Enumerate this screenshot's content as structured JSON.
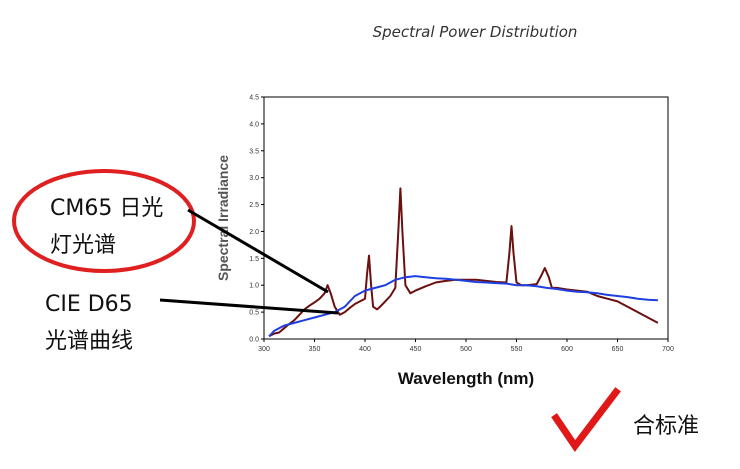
{
  "chart_data": {
    "type": "line",
    "title": "Spectral Power Distribution",
    "xlabel": "Wavelength (nm)",
    "ylabel": "Spectral Irradiance",
    "xlim": [
      300,
      700
    ],
    "ylim": [
      0,
      4.5
    ],
    "x_ticks": [
      "300",
      "350",
      "400",
      "450",
      "500",
      "550",
      "600",
      "650",
      "700"
    ],
    "y_ticks": [
      "0.0",
      "0.5",
      "1.0",
      "1.5",
      "2.0",
      "2.5",
      "3.0",
      "3.5",
      "4.0",
      "4.5"
    ],
    "grid": false,
    "series": [
      {
        "name": "CM65",
        "color": "#6b0f0f",
        "points": [
          [
            305,
            0.05
          ],
          [
            310,
            0.1
          ],
          [
            315,
            0.12
          ],
          [
            320,
            0.2
          ],
          [
            325,
            0.28
          ],
          [
            330,
            0.35
          ],
          [
            335,
            0.45
          ],
          [
            340,
            0.55
          ],
          [
            345,
            0.62
          ],
          [
            350,
            0.68
          ],
          [
            355,
            0.75
          ],
          [
            360,
            0.85
          ],
          [
            363,
            1.0
          ],
          [
            366,
            0.85
          ],
          [
            370,
            0.6
          ],
          [
            375,
            0.45
          ],
          [
            380,
            0.5
          ],
          [
            385,
            0.58
          ],
          [
            390,
            0.65
          ],
          [
            395,
            0.7
          ],
          [
            400,
            0.75
          ],
          [
            402,
            1.2
          ],
          [
            404,
            1.55
          ],
          [
            406,
            1.0
          ],
          [
            408,
            0.6
          ],
          [
            412,
            0.55
          ],
          [
            415,
            0.6
          ],
          [
            420,
            0.7
          ],
          [
            425,
            0.8
          ],
          [
            430,
            0.95
          ],
          [
            433,
            2.0
          ],
          [
            435,
            2.8
          ],
          [
            437,
            2.0
          ],
          [
            440,
            1.0
          ],
          [
            445,
            0.85
          ],
          [
            450,
            0.9
          ],
          [
            460,
            0.98
          ],
          [
            470,
            1.05
          ],
          [
            480,
            1.08
          ],
          [
            490,
            1.1
          ],
          [
            500,
            1.1
          ],
          [
            510,
            1.1
          ],
          [
            520,
            1.08
          ],
          [
            530,
            1.06
          ],
          [
            540,
            1.05
          ],
          [
            543,
            1.6
          ],
          [
            545,
            2.1
          ],
          [
            547,
            1.6
          ],
          [
            550,
            1.05
          ],
          [
            555,
            1.0
          ],
          [
            560,
            1.0
          ],
          [
            570,
            1.02
          ],
          [
            575,
            1.2
          ],
          [
            578,
            1.32
          ],
          [
            582,
            1.15
          ],
          [
            585,
            0.95
          ],
          [
            590,
            0.95
          ],
          [
            600,
            0.92
          ],
          [
            610,
            0.9
          ],
          [
            620,
            0.88
          ],
          [
            630,
            0.8
          ],
          [
            640,
            0.75
          ],
          [
            650,
            0.7
          ],
          [
            660,
            0.6
          ],
          [
            670,
            0.5
          ],
          [
            680,
            0.4
          ],
          [
            690,
            0.3
          ]
        ]
      },
      {
        "name": "CIE D65",
        "color": "#1f3fe0",
        "points": [
          [
            305,
            0.05
          ],
          [
            310,
            0.15
          ],
          [
            315,
            0.2
          ],
          [
            320,
            0.25
          ],
          [
            330,
            0.3
          ],
          [
            340,
            0.35
          ],
          [
            350,
            0.4
          ],
          [
            360,
            0.45
          ],
          [
            370,
            0.5
          ],
          [
            380,
            0.6
          ],
          [
            390,
            0.8
          ],
          [
            400,
            0.9
          ],
          [
            410,
            0.95
          ],
          [
            420,
            1.0
          ],
          [
            430,
            1.1
          ],
          [
            440,
            1.15
          ],
          [
            450,
            1.17
          ],
          [
            460,
            1.15
          ],
          [
            470,
            1.13
          ],
          [
            480,
            1.12
          ],
          [
            490,
            1.1
          ],
          [
            500,
            1.08
          ],
          [
            510,
            1.06
          ],
          [
            520,
            1.05
          ],
          [
            530,
            1.04
          ],
          [
            540,
            1.03
          ],
          [
            550,
            1.0
          ],
          [
            560,
            1.0
          ],
          [
            570,
            0.98
          ],
          [
            580,
            0.95
          ],
          [
            590,
            0.93
          ],
          [
            600,
            0.9
          ],
          [
            610,
            0.88
          ],
          [
            620,
            0.87
          ],
          [
            630,
            0.85
          ],
          [
            640,
            0.82
          ],
          [
            650,
            0.8
          ],
          [
            660,
            0.78
          ],
          [
            670,
            0.75
          ],
          [
            680,
            0.73
          ],
          [
            690,
            0.72
          ]
        ]
      }
    ]
  },
  "annotations": {
    "cm65_line1": "CM65 日光",
    "cm65_line2": "灯光谱",
    "d65_line1": "CIE D65",
    "d65_line2": "光谱曲线",
    "pass_text": "合标准"
  }
}
